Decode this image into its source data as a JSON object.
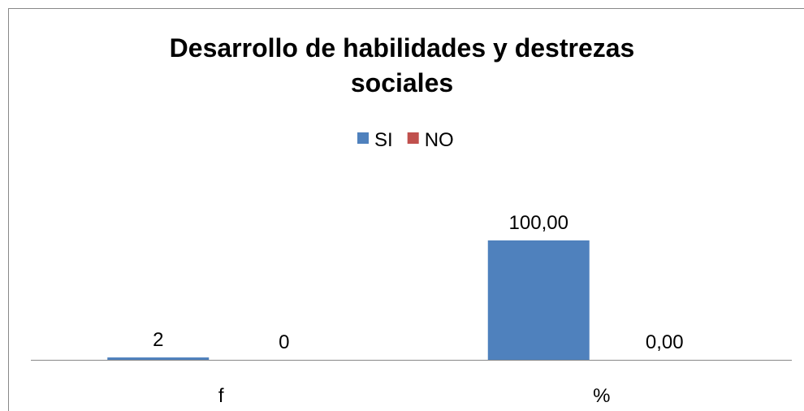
{
  "chart_data": {
    "type": "bar",
    "title": "Desarrollo de habilidades y destrezas sociales",
    "categories": [
      "f",
      "%"
    ],
    "series": [
      {
        "name": "SI",
        "color": "#4f81bd",
        "values": [
          2,
          100
        ],
        "value_labels": [
          "2",
          "100,00"
        ]
      },
      {
        "name": "NO",
        "color": "#c0504d",
        "values": [
          0,
          0
        ],
        "value_labels": [
          "0",
          "0,00"
        ]
      }
    ],
    "legend": "top"
  }
}
